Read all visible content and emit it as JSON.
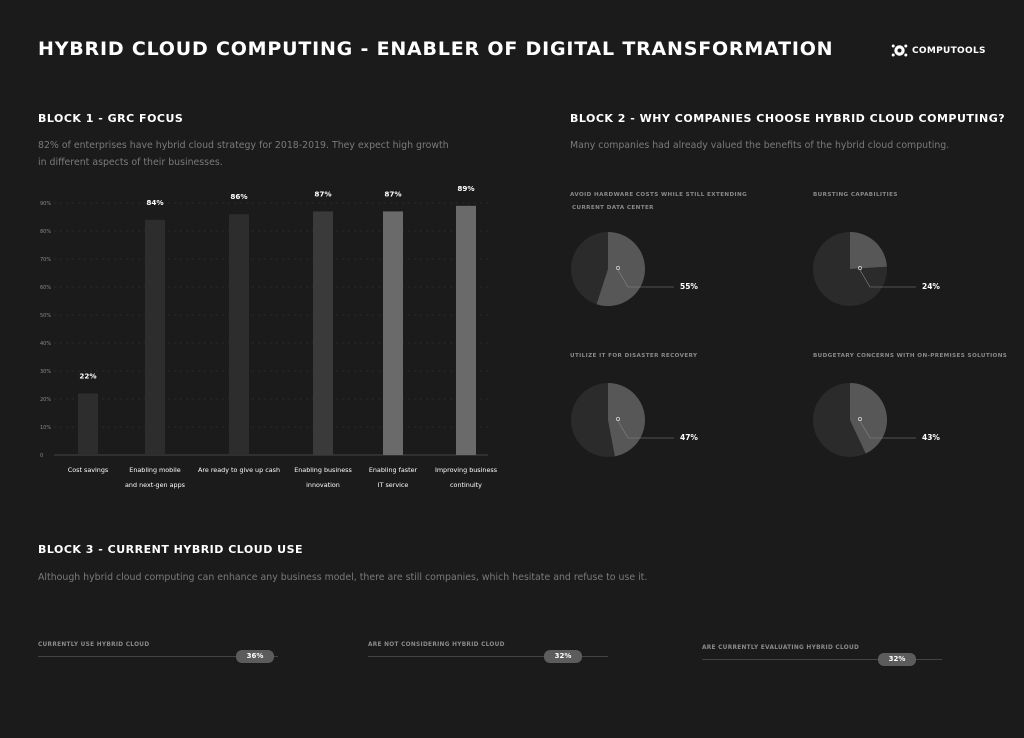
{
  "title": "HYBRID CLOUD COMPUTING - ENABLER OF DIGITAL TRANSFORMATION",
  "logo_text": "COMPUTOOLS",
  "block1": {
    "title": "BLOCK 1 - GRC FOCUS",
    "desc_line1": "82% of enterprises have hybrid cloud strategy for 2018-2019. They expect high growth",
    "desc_line2": "in different aspects of their businesses."
  },
  "block2": {
    "title": "BLOCK 2 - WHY COMPANIES CHOOSE HYBRID CLOUD COMPUTING?",
    "desc": "Many companies had already valued the benefits of the hybrid cloud computing."
  },
  "block3": {
    "title": "BLOCK 3 - CURRENT HYBRID CLOUD USE",
    "desc": "Although hybrid cloud computing can enhance any business model, there are still companies, which hesitate and refuse to use it."
  },
  "colors": {
    "background": "#1b1b1b",
    "bar_dark": "#2d2d2d",
    "bar_light": "#6a6a6a",
    "pie_dark": "#2b2b2b",
    "pie_light": "#575757"
  },
  "chart_data": [
    {
      "type": "bar",
      "categories": [
        [
          "Cost savings"
        ],
        [
          "Enabling mobile",
          "and next-gen apps"
        ],
        [
          "Are ready to give up cash"
        ],
        [
          "Enabling business",
          "innovation"
        ],
        [
          "Enabling faster",
          "IT service"
        ],
        [
          "Improving business",
          "continuity"
        ]
      ],
      "values": [
        22,
        84,
        86,
        87,
        87,
        89
      ],
      "labels": [
        "22%",
        "84%",
        "86%",
        "87%",
        "87%",
        "89%"
      ],
      "yticks": [
        "0",
        "10%",
        "20%",
        "30%",
        "40%",
        "50%",
        "60%",
        "70%",
        "80%",
        "90%"
      ],
      "ylim": [
        0,
        90
      ],
      "grid": true
    },
    {
      "type": "pie",
      "items": [
        {
          "title_line1": "AVOID HARDWARE COSTS WHILE STILL EXTENDING",
          "title_line2": "CURRENT DATA CENTER",
          "value": 55,
          "label": "55%"
        },
        {
          "title_line1": "BURSTING CAPABILITIES",
          "title_line2": "",
          "value": 24,
          "label": "24%"
        },
        {
          "title_line1": "UTILIZE IT FOR DISASTER RECOVERY",
          "title_line2": "",
          "value": 47,
          "label": "47%"
        },
        {
          "title_line1": "BUDGETARY CONCERNS WITH ON-PREMISES SOLUTIONS",
          "title_line2": "",
          "value": 43,
          "label": "43%"
        }
      ]
    },
    {
      "type": "bar",
      "orientation": "horizontal",
      "items": [
        {
          "label": "CURRENTLY USE HYBRID CLOUD",
          "value": 36,
          "text": "36%"
        },
        {
          "label": "ARE NOT CONSIDERING HYBRID CLOUD",
          "value": 32,
          "text": "32%"
        },
        {
          "label": "ARE CURRENTLY EVALUATING HYBRID CLOUD",
          "value": 32,
          "text": "32%"
        }
      ]
    }
  ]
}
